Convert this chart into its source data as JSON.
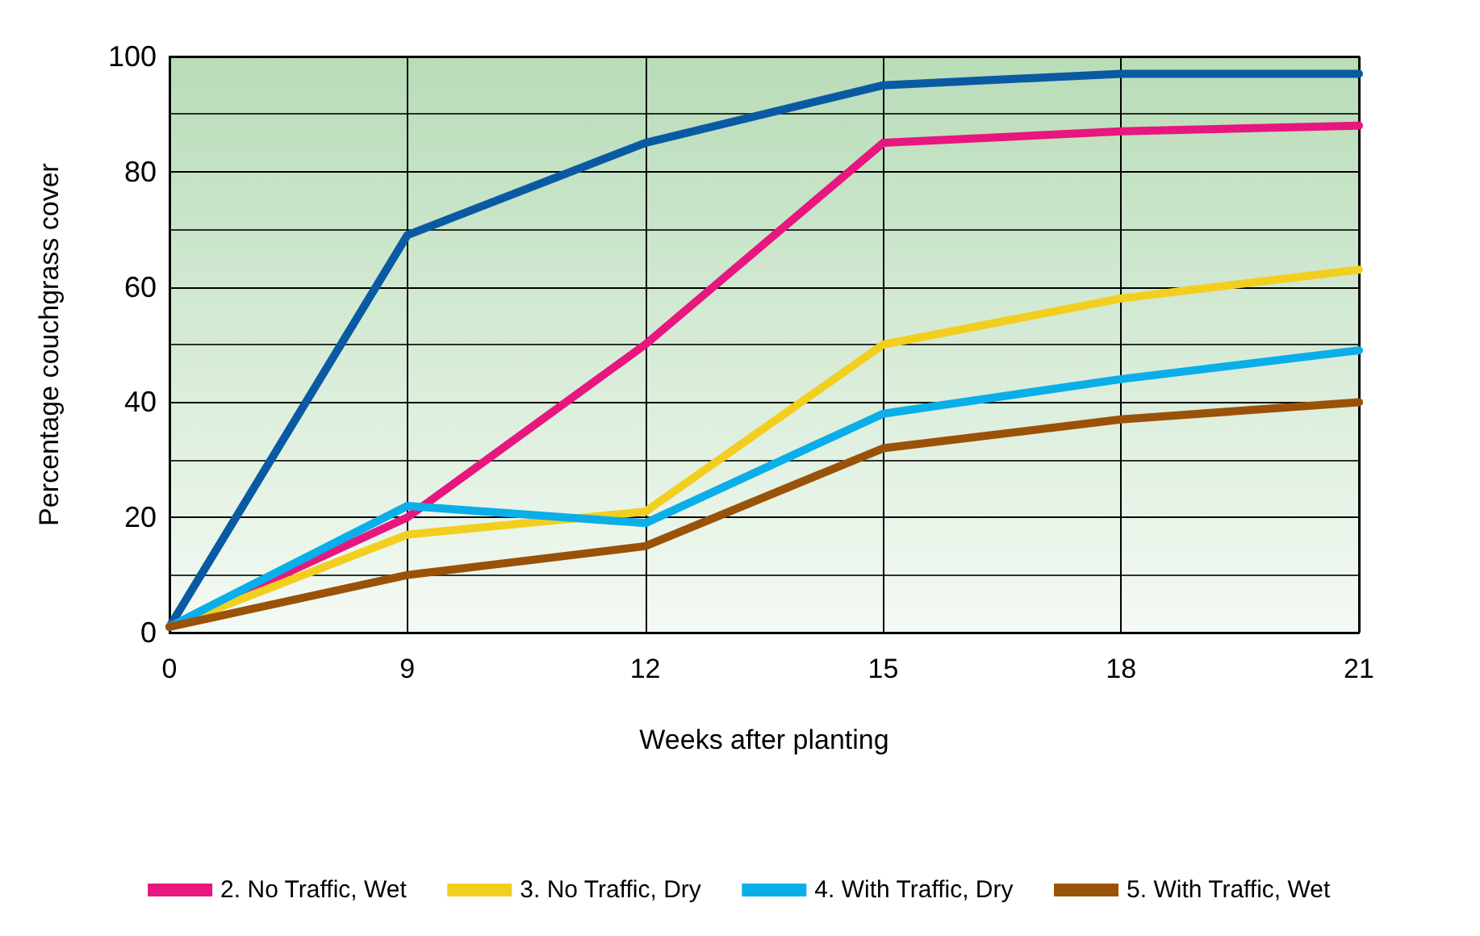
{
  "chart_data": {
    "type": "line",
    "xlabel": "Weeks after planting",
    "ylabel": "Percentage couchgrass cover",
    "categories": [
      "0",
      "9",
      "12",
      "15",
      "18",
      "21"
    ],
    "series": [
      {
        "color": "#0a5aa3",
        "values": [
          1,
          69,
          85,
          95,
          97,
          97
        ]
      },
      {
        "name": "2. No Traffic, Wet",
        "color": "#e8167f",
        "values": [
          1,
          20,
          50,
          85,
          87,
          88
        ]
      },
      {
        "name": "3. No Traffic, Dry",
        "color": "#f2cf1f",
        "values": [
          1,
          17,
          21,
          50,
          58,
          63
        ]
      },
      {
        "name": "4. With Traffic, Dry",
        "color": "#0aaee8",
        "values": [
          1,
          22,
          19,
          38,
          44,
          49
        ]
      },
      {
        "name": "5. With Traffic, Wet",
        "color": "#9a5209",
        "values": [
          1,
          10,
          15,
          32,
          37,
          40
        ]
      }
    ],
    "ylim": [
      0,
      100
    ],
    "yticks": [
      0,
      20,
      40,
      60,
      80,
      100
    ],
    "grid": true,
    "legend": "bottom",
    "marker": "none",
    "line_style": "solid"
  }
}
